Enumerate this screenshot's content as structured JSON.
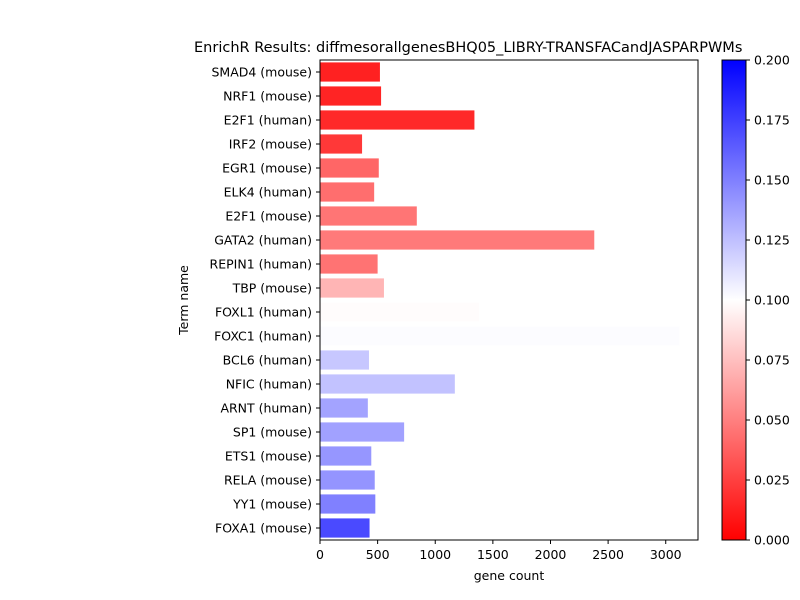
{
  "chart_data": {
    "type": "bar",
    "orientation": "horizontal",
    "title": "EnrichR Results: diffmesorallgenesBHQ05_LIBRY-TRANSFACandJASPARPWMs",
    "xlabel": "gene count",
    "ylabel": "Term name",
    "xlim": [
      0,
      3280
    ],
    "x_ticks": [
      "0",
      "500",
      "1000",
      "1500",
      "2000",
      "2500",
      "3000"
    ],
    "grid": false,
    "categories": [
      "SMAD4 (mouse)",
      "NRF1 (mouse)",
      "E2F1 (human)",
      "IRF2 (mouse)",
      "EGR1 (mouse)",
      "ELK4 (human)",
      "E2F1 (mouse)",
      "GATA2 (human)",
      "REPIN1 (human)",
      "TBP (mouse)",
      "FOXL1 (human)",
      "FOXC1 (human)",
      "BCL6 (human)",
      "NFIC (human)",
      "ARNT (human)",
      "SP1 (mouse)",
      "ETS1 (mouse)",
      "RELA (mouse)",
      "YY1 (mouse)",
      "FOXA1 (mouse)"
    ],
    "values": [
      520,
      530,
      1340,
      365,
      510,
      470,
      840,
      2380,
      500,
      555,
      1380,
      3120,
      425,
      1170,
      415,
      730,
      445,
      475,
      480,
      430
    ],
    "color_values": [
      0.013,
      0.014,
      0.016,
      0.022,
      0.04,
      0.043,
      0.046,
      0.048,
      0.045,
      0.071,
      0.099,
      0.101,
      0.122,
      0.124,
      0.136,
      0.137,
      0.141,
      0.142,
      0.15,
      0.171
    ],
    "colorbar": {
      "range": [
        0.0,
        0.2
      ],
      "ticks": [
        "0.000",
        "0.025",
        "0.050",
        "0.075",
        "0.100",
        "0.125",
        "0.150",
        "0.175",
        "0.200"
      ],
      "colormap": "bwr_r",
      "low_color": "#ff0000",
      "mid_color": "#ffffff",
      "high_color": "#0000ff"
    }
  }
}
